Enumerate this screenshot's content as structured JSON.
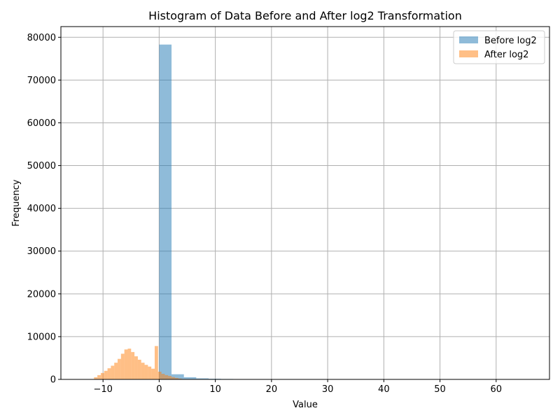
{
  "chart_data": {
    "type": "bar",
    "title": "Histogram of Data Before and After log2 Transformation",
    "xlabel": "Value",
    "ylabel": "Frequency",
    "xlim": [
      -17.5,
      69.5
    ],
    "ylim": [
      0,
      82500
    ],
    "xticks": [
      -10,
      0,
      10,
      20,
      30,
      40,
      50,
      60
    ],
    "xtick_labels": [
      "−10",
      "0",
      "10",
      "20",
      "30",
      "40",
      "50",
      "60"
    ],
    "yticks": [
      0,
      10000,
      20000,
      30000,
      40000,
      50000,
      60000,
      70000,
      80000
    ],
    "ytick_labels": [
      "0",
      "10000",
      "20000",
      "30000",
      "40000",
      "50000",
      "60000",
      "70000",
      "80000"
    ],
    "grid": true,
    "legend_position": "top-right",
    "series": [
      {
        "name": "Before log2",
        "color": "#1f77b4",
        "alpha": 0.5,
        "bins": [
          {
            "x0": 0.0,
            "x1": 2.2,
            "value": 78300
          },
          {
            "x0": 2.2,
            "x1": 4.4,
            "value": 1200
          },
          {
            "x0": 4.4,
            "x1": 6.6,
            "value": 500
          },
          {
            "x0": 6.6,
            "x1": 8.8,
            "value": 250
          },
          {
            "x0": 8.8,
            "x1": 11.0,
            "value": 150
          },
          {
            "x0": 11.0,
            "x1": 13.2,
            "value": 100
          },
          {
            "x0": 13.2,
            "x1": 15.4,
            "value": 80
          },
          {
            "x0": 15.4,
            "x1": 17.6,
            "value": 60
          },
          {
            "x0": 17.6,
            "x1": 19.8,
            "value": 40
          },
          {
            "x0": 19.8,
            "x1": 22.0,
            "value": 20
          },
          {
            "x0": 22.0,
            "x1": 24.2,
            "value": 10
          },
          {
            "x0": 24.2,
            "x1": 26.4,
            "value": 8
          },
          {
            "x0": 26.4,
            "x1": 28.6,
            "value": 6
          },
          {
            "x0": 28.6,
            "x1": 30.8,
            "value": 5
          },
          {
            "x0": 30.8,
            "x1": 33.0,
            "value": 4
          },
          {
            "x0": 33.0,
            "x1": 35.2,
            "value": 3
          },
          {
            "x0": 35.2,
            "x1": 37.4,
            "value": 3
          },
          {
            "x0": 37.4,
            "x1": 39.6,
            "value": 2
          },
          {
            "x0": 39.6,
            "x1": 41.8,
            "value": 2
          },
          {
            "x0": 41.8,
            "x1": 44.0,
            "value": 2
          },
          {
            "x0": 44.0,
            "x1": 46.2,
            "value": 1
          },
          {
            "x0": 46.2,
            "x1": 48.4,
            "value": 1
          },
          {
            "x0": 48.4,
            "x1": 50.6,
            "value": 1
          },
          {
            "x0": 50.6,
            "x1": 52.8,
            "value": 1
          },
          {
            "x0": 52.8,
            "x1": 55.0,
            "value": 1
          },
          {
            "x0": 55.0,
            "x1": 57.2,
            "value": 1
          },
          {
            "x0": 57.2,
            "x1": 59.4,
            "value": 1
          },
          {
            "x0": 59.4,
            "x1": 61.6,
            "value": 1
          },
          {
            "x0": 61.6,
            "x1": 63.8,
            "value": 1
          },
          {
            "x0": 63.8,
            "x1": 66.0,
            "value": 1
          }
        ]
      },
      {
        "name": "After log2",
        "color": "#ff7f0e",
        "alpha": 0.5,
        "bins": [
          {
            "x0": -12.4,
            "x1": -11.6,
            "value": 50
          },
          {
            "x0": -11.6,
            "x1": -11.0,
            "value": 500
          },
          {
            "x0": -11.0,
            "x1": -10.4,
            "value": 1000
          },
          {
            "x0": -10.4,
            "x1": -9.8,
            "value": 1500
          },
          {
            "x0": -9.8,
            "x1": -9.2,
            "value": 2000
          },
          {
            "x0": -9.2,
            "x1": -8.6,
            "value": 2600
          },
          {
            "x0": -8.6,
            "x1": -8.0,
            "value": 3200
          },
          {
            "x0": -8.0,
            "x1": -7.4,
            "value": 3900
          },
          {
            "x0": -7.4,
            "x1": -6.8,
            "value": 4800
          },
          {
            "x0": -6.8,
            "x1": -6.2,
            "value": 6000
          },
          {
            "x0": -6.2,
            "x1": -5.6,
            "value": 7000
          },
          {
            "x0": -5.6,
            "x1": -5.0,
            "value": 7200
          },
          {
            "x0": -5.0,
            "x1": -4.4,
            "value": 6400
          },
          {
            "x0": -4.4,
            "x1": -3.8,
            "value": 5400
          },
          {
            "x0": -3.8,
            "x1": -3.2,
            "value": 4600
          },
          {
            "x0": -3.2,
            "x1": -2.6,
            "value": 3900
          },
          {
            "x0": -2.6,
            "x1": -2.0,
            "value": 3400
          },
          {
            "x0": -2.0,
            "x1": -1.4,
            "value": 3000
          },
          {
            "x0": -1.4,
            "x1": -0.8,
            "value": 2500
          },
          {
            "x0": -0.8,
            "x1": -0.2,
            "value": 7800
          },
          {
            "x0": -0.2,
            "x1": 0.4,
            "value": 1800
          },
          {
            "x0": 0.4,
            "x1": 1.0,
            "value": 1300
          },
          {
            "x0": 1.0,
            "x1": 1.6,
            "value": 1000
          },
          {
            "x0": 1.6,
            "x1": 2.2,
            "value": 800
          },
          {
            "x0": 2.2,
            "x1": 2.8,
            "value": 550
          },
          {
            "x0": 2.8,
            "x1": 3.4,
            "value": 350
          },
          {
            "x0": 3.4,
            "x1": 4.0,
            "value": 200
          },
          {
            "x0": 4.0,
            "x1": 4.6,
            "value": 100
          },
          {
            "x0": 4.6,
            "x1": 5.2,
            "value": 50
          },
          {
            "x0": 5.2,
            "x1": 5.8,
            "value": 20
          }
        ]
      }
    ]
  }
}
